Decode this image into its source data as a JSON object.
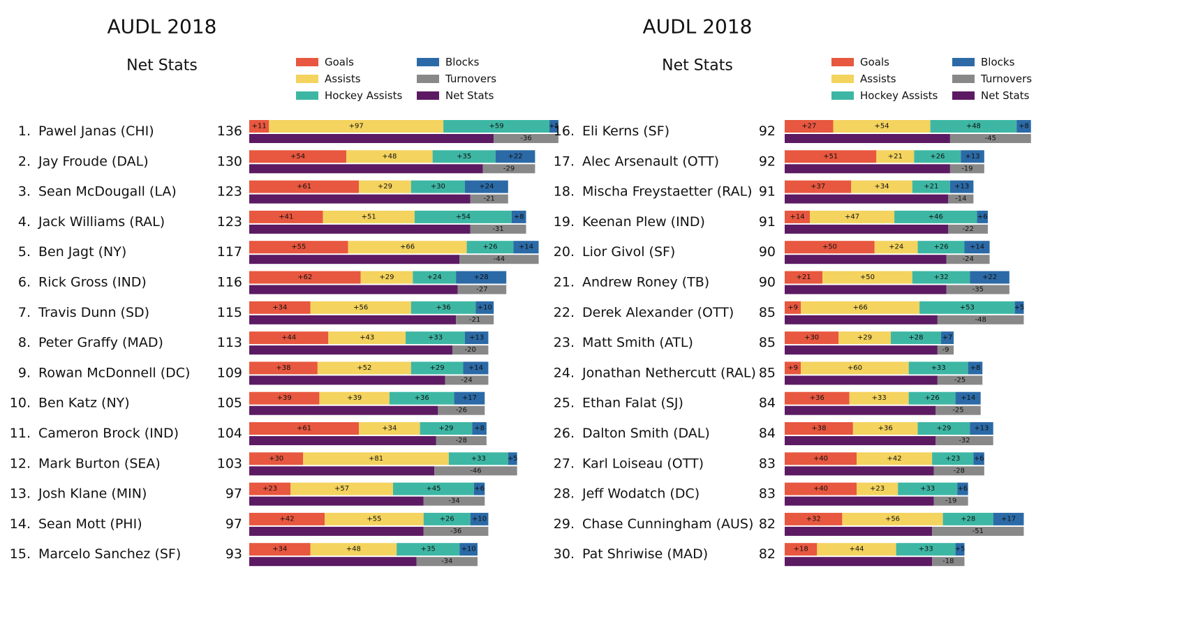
{
  "colors": {
    "goals": "#E8573F",
    "assists": "#F4D35E",
    "hockey_assists": "#3DB7A4",
    "blocks": "#2B6AA6",
    "turnovers": "#888888",
    "net_stats": "#5C1A63"
  },
  "chart_data": [
    {
      "type": "bar",
      "title": "AUDL 2018",
      "subtitle": "Net Stats",
      "legend": [
        "Goals",
        "Assists",
        "Hockey  Assists",
        "Blocks",
        "Turnovers",
        "Net  Stats"
      ],
      "legend_position": "top-right",
      "players": [
        {
          "rank": "1.",
          "name": "Pawel Janas (CHI)",
          "net": 136,
          "goals": 11,
          "assists": 97,
          "hockey_assists": 59,
          "blocks": 5,
          "turnovers": -36
        },
        {
          "rank": "2.",
          "name": "Jay Froude (DAL)",
          "net": 130,
          "goals": 54,
          "assists": 48,
          "hockey_assists": 35,
          "blocks": 22,
          "turnovers": -29
        },
        {
          "rank": "3.",
          "name": "Sean McDougall (LA)",
          "net": 123,
          "goals": 61,
          "assists": 29,
          "hockey_assists": 30,
          "blocks": 24,
          "turnovers": -21
        },
        {
          "rank": "4.",
          "name": "Jack Williams (RAL)",
          "net": 123,
          "goals": 41,
          "assists": 51,
          "hockey_assists": 54,
          "blocks": 8,
          "turnovers": -31
        },
        {
          "rank": "5.",
          "name": "Ben Jagt (NY)",
          "net": 117,
          "goals": 55,
          "assists": 66,
          "hockey_assists": 26,
          "blocks": 14,
          "turnovers": -44
        },
        {
          "rank": "6.",
          "name": "Rick Gross (IND)",
          "net": 116,
          "goals": 62,
          "assists": 29,
          "hockey_assists": 24,
          "blocks": 28,
          "turnovers": -27
        },
        {
          "rank": "7.",
          "name": "Travis Dunn (SD)",
          "net": 115,
          "goals": 34,
          "assists": 56,
          "hockey_assists": 36,
          "blocks": 10,
          "turnovers": -21
        },
        {
          "rank": "8.",
          "name": "Peter Graffy (MAD)",
          "net": 113,
          "goals": 44,
          "assists": 43,
          "hockey_assists": 33,
          "blocks": 13,
          "turnovers": -20
        },
        {
          "rank": "9.",
          "name": "Rowan McDonnell (DC)",
          "net": 109,
          "goals": 38,
          "assists": 52,
          "hockey_assists": 29,
          "blocks": 14,
          "turnovers": -24
        },
        {
          "rank": "10.",
          "name": "Ben Katz (NY)",
          "net": 105,
          "goals": 39,
          "assists": 39,
          "hockey_assists": 36,
          "blocks": 17,
          "turnovers": -26
        },
        {
          "rank": "11.",
          "name": "Cameron Brock (IND)",
          "net": 104,
          "goals": 61,
          "assists": 34,
          "hockey_assists": 29,
          "blocks": 8,
          "turnovers": -28
        },
        {
          "rank": "12.",
          "name": "Mark Burton (SEA)",
          "net": 103,
          "goals": 30,
          "assists": 81,
          "hockey_assists": 33,
          "blocks": 5,
          "turnovers": -46
        },
        {
          "rank": "13.",
          "name": "Josh Klane (MIN)",
          "net": 97,
          "goals": 23,
          "assists": 57,
          "hockey_assists": 45,
          "blocks": 6,
          "turnovers": -34
        },
        {
          "rank": "14.",
          "name": "Sean Mott (PHI)",
          "net": 97,
          "goals": 42,
          "assists": 55,
          "hockey_assists": 26,
          "blocks": 10,
          "turnovers": -36
        },
        {
          "rank": "15.",
          "name": "Marcelo Sanchez (SF)",
          "net": 93,
          "goals": 34,
          "assists": 48,
          "hockey_assists": 35,
          "blocks": 10,
          "turnovers": -34
        }
      ]
    },
    {
      "type": "bar",
      "title": "AUDL 2018",
      "subtitle": "Net Stats",
      "legend": [
        "Goals",
        "Assists",
        "Hockey  Assists",
        "Blocks",
        "Turnovers",
        "Net  Stats"
      ],
      "legend_position": "top-right",
      "players": [
        {
          "rank": "16.",
          "name": "Eli Kerns (SF)",
          "net": 92,
          "goals": 27,
          "assists": 54,
          "hockey_assists": 48,
          "blocks": 8,
          "turnovers": -45
        },
        {
          "rank": "17.",
          "name": "Alec Arsenault (OTT)",
          "net": 92,
          "goals": 51,
          "assists": 21,
          "hockey_assists": 26,
          "blocks": 13,
          "turnovers": -19
        },
        {
          "rank": "18.",
          "name": "Mischa Freystaetter (RAL)",
          "net": 91,
          "goals": 37,
          "assists": 34,
          "hockey_assists": 21,
          "blocks": 13,
          "turnovers": -14
        },
        {
          "rank": "19.",
          "name": "Keenan Plew (IND)",
          "net": 91,
          "goals": 14,
          "assists": 47,
          "hockey_assists": 46,
          "blocks": 6,
          "turnovers": -22
        },
        {
          "rank": "20.",
          "name": "Lior Givol (SF)",
          "net": 90,
          "goals": 50,
          "assists": 24,
          "hockey_assists": 26,
          "blocks": 14,
          "turnovers": -24
        },
        {
          "rank": "21.",
          "name": "Andrew Roney (TB)",
          "net": 90,
          "goals": 21,
          "assists": 50,
          "hockey_assists": 32,
          "blocks": 22,
          "turnovers": -35
        },
        {
          "rank": "22.",
          "name": "Derek Alexander (OTT)",
          "net": 85,
          "goals": 9,
          "assists": 66,
          "hockey_assists": 53,
          "blocks": 5,
          "turnovers": -48
        },
        {
          "rank": "23.",
          "name": "Matt Smith (ATL)",
          "net": 85,
          "goals": 30,
          "assists": 29,
          "hockey_assists": 28,
          "blocks": 7,
          "turnovers": -9
        },
        {
          "rank": "24.",
          "name": "Jonathan Nethercutt (RAL)",
          "net": 85,
          "goals": 9,
          "assists": 60,
          "hockey_assists": 33,
          "blocks": 8,
          "turnovers": -25
        },
        {
          "rank": "25.",
          "name": "Ethan Falat (SJ)",
          "net": 84,
          "goals": 36,
          "assists": 33,
          "hockey_assists": 26,
          "blocks": 14,
          "turnovers": -25
        },
        {
          "rank": "26.",
          "name": "Dalton Smith (DAL)",
          "net": 84,
          "goals": 38,
          "assists": 36,
          "hockey_assists": 29,
          "blocks": 13,
          "turnovers": -32
        },
        {
          "rank": "27.",
          "name": "Karl Loiseau (OTT)",
          "net": 83,
          "goals": 40,
          "assists": 42,
          "hockey_assists": 23,
          "blocks": 6,
          "turnovers": -28
        },
        {
          "rank": "28.",
          "name": "Jeff Wodatch (DC)",
          "net": 83,
          "goals": 40,
          "assists": 23,
          "hockey_assists": 33,
          "blocks": 6,
          "turnovers": -19
        },
        {
          "rank": "29.",
          "name": "Chase Cunningham (AUS)",
          "net": 82,
          "goals": 32,
          "assists": 56,
          "hockey_assists": 28,
          "blocks": 17,
          "turnovers": -51
        },
        {
          "rank": "30.",
          "name": "Pat Shriwise (MAD)",
          "net": 82,
          "goals": 18,
          "assists": 44,
          "hockey_assists": 33,
          "blocks": 5,
          "turnovers": -18
        }
      ]
    }
  ]
}
